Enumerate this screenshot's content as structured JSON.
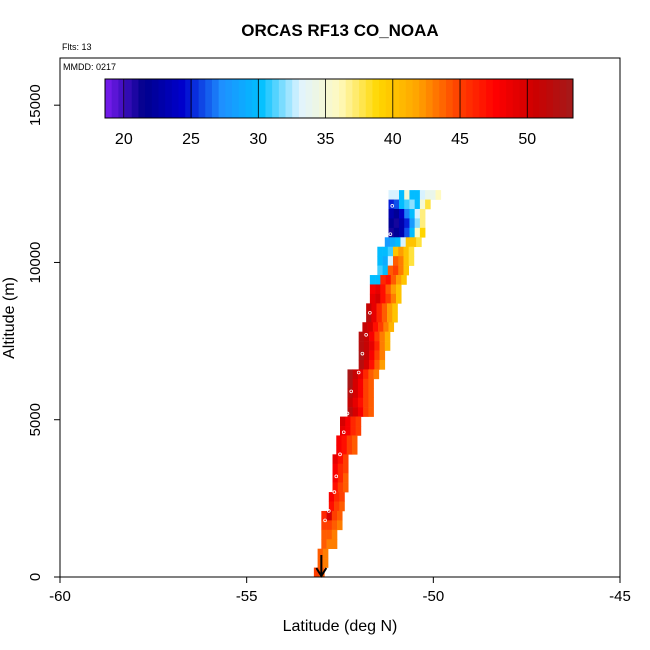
{
  "chart_data": {
    "type": "heatmap",
    "title": "ORCAS RF13 CO_NOAA",
    "flights_label": "Flts: 13",
    "date_label": "MMDD: 0217",
    "xlabel": "Latitude (deg N)",
    "ylabel": "Altitude (m)",
    "xlim": [
      -60,
      -45
    ],
    "ylim": [
      0,
      16500
    ],
    "xticks": [
      -60,
      -55,
      -50,
      -45
    ],
    "yticks": [
      0,
      5000,
      10000,
      15000
    ],
    "colorbar": {
      "range": [
        18.6,
        53.4
      ],
      "ticks": [
        20,
        25,
        30,
        35,
        40,
        45,
        50
      ],
      "colors": [
        "#7a1cf0",
        "#00008b",
        "#0000cd",
        "#1e90ff",
        "#00bfff",
        "#e0f4ff",
        "#fffac0",
        "#ffd700",
        "#ffa500",
        "#ff4500",
        "#ff0000",
        "#cd0000",
        "#a31a1a"
      ]
    },
    "profile": [
      {
        "alt": 12000,
        "lat_start": -51.2,
        "values": [
          33,
          33,
          30,
          35,
          30,
          30,
          33,
          34,
          34,
          36
        ]
      },
      {
        "alt": 11700,
        "lat_start": -51.2,
        "values": [
          25,
          26,
          30,
          31,
          32,
          30,
          35,
          38
        ]
      },
      {
        "alt": 11400,
        "lat_start": -51.2,
        "values": [
          23,
          22,
          24,
          27,
          30,
          33,
          37
        ]
      },
      {
        "alt": 11100,
        "lat_start": -51.2,
        "values": [
          22,
          21,
          23,
          25,
          28,
          32,
          37
        ]
      },
      {
        "alt": 10800,
        "lat_start": -51.2,
        "values": [
          21,
          22,
          23,
          26,
          30,
          36,
          39
        ]
      },
      {
        "alt": 10500,
        "lat_start": -51.3,
        "values": [
          28,
          29,
          30,
          33,
          40,
          40,
          38
        ]
      },
      {
        "alt": 10200,
        "lat_start": -51.5,
        "values": [
          30,
          30,
          31,
          40,
          42,
          40,
          38
        ]
      },
      {
        "alt": 9900,
        "lat_start": -51.5,
        "values": [
          30,
          29,
          33,
          44,
          43,
          40,
          38
        ]
      },
      {
        "alt": 9600,
        "lat_start": -51.5,
        "values": [
          31,
          30,
          44,
          45,
          43,
          40
        ]
      },
      {
        "alt": 9300,
        "lat_start": -51.7,
        "values": [
          30,
          30,
          46,
          47,
          44,
          42,
          40
        ]
      },
      {
        "alt": 9000,
        "lat_start": -51.7,
        "values": [
          48,
          49,
          47,
          44,
          42,
          40
        ]
      },
      {
        "alt": 8700,
        "lat_start": -51.7,
        "values": [
          49,
          50,
          47,
          45,
          43,
          40
        ]
      },
      {
        "alt": 8400,
        "lat_start": -51.8,
        "values": [
          51,
          49,
          46,
          44,
          42,
          40
        ]
      },
      {
        "alt": 8100,
        "lat_start": -51.8,
        "values": [
          52,
          49,
          46,
          44,
          42,
          40
        ]
      },
      {
        "alt": 7800,
        "lat_start": -51.9,
        "values": [
          51,
          50,
          47,
          45,
          43,
          41
        ]
      },
      {
        "alt": 7500,
        "lat_start": -52.0,
        "values": [
          52,
          51,
          48,
          45,
          43,
          41
        ]
      },
      {
        "alt": 7200,
        "lat_start": -52.0,
        "values": [
          52,
          51,
          49,
          46,
          43,
          41
        ]
      },
      {
        "alt": 6900,
        "lat_start": -52.0,
        "values": [
          53,
          51,
          48,
          45,
          43
        ]
      },
      {
        "alt": 6600,
        "lat_start": -52.0,
        "values": [
          52,
          50,
          47,
          44,
          42
        ]
      },
      {
        "alt": 6300,
        "lat_start": -52.3,
        "values": [
          53,
          51,
          49,
          46,
          44,
          43
        ]
      },
      {
        "alt": 6000,
        "lat_start": -52.3,
        "values": [
          53,
          50,
          48,
          45,
          44
        ]
      },
      {
        "alt": 5700,
        "lat_start": -52.3,
        "values": [
          52,
          50,
          48,
          45,
          44
        ]
      },
      {
        "alt": 5400,
        "lat_start": -52.3,
        "values": [
          51,
          49,
          47,
          45,
          44
        ]
      },
      {
        "alt": 5100,
        "lat_start": -52.3,
        "values": [
          52,
          50,
          48,
          45,
          44
        ]
      },
      {
        "alt": 4800,
        "lat_start": -52.5,
        "values": [
          50,
          48,
          46,
          45
        ]
      },
      {
        "alt": 4500,
        "lat_start": -52.5,
        "values": [
          49,
          48,
          46,
          45
        ]
      },
      {
        "alt": 4200,
        "lat_start": -52.6,
        "values": [
          48,
          47,
          45,
          44
        ]
      },
      {
        "alt": 3900,
        "lat_start": -52.6,
        "values": [
          48,
          47,
          45,
          44
        ]
      },
      {
        "alt": 3600,
        "lat_start": -52.7,
        "values": [
          49,
          47,
          45
        ]
      },
      {
        "alt": 3300,
        "lat_start": -52.7,
        "values": [
          48,
          46,
          45
        ]
      },
      {
        "alt": 3000,
        "lat_start": -52.7,
        "values": [
          48,
          46,
          44
        ]
      },
      {
        "alt": 2700,
        "lat_start": -52.7,
        "values": [
          47,
          45,
          44
        ]
      },
      {
        "alt": 2400,
        "lat_start": -52.8,
        "values": [
          48,
          46,
          45
        ]
      },
      {
        "alt": 2100,
        "lat_start": -52.8,
        "values": [
          47,
          45,
          44
        ]
      },
      {
        "alt": 1800,
        "lat_start": -53.0,
        "values": [
          46,
          50,
          45,
          44
        ]
      },
      {
        "alt": 1500,
        "lat_start": -53.0,
        "values": [
          45,
          45,
          44,
          43
        ]
      },
      {
        "alt": 1200,
        "lat_start": -53.0,
        "values": [
          44,
          44,
          43
        ]
      },
      {
        "alt": 900,
        "lat_start": -53.0,
        "values": [
          44,
          43,
          43
        ]
      },
      {
        "alt": 600,
        "lat_start": -53.1,
        "values": [
          44,
          43
        ]
      },
      {
        "alt": 300,
        "lat_start": -53.1,
        "values": [
          44,
          43
        ]
      },
      {
        "alt": 0,
        "lat_start": -53.2,
        "values": [
          45,
          44
        ]
      }
    ],
    "markers": [
      {
        "lat": -51.1,
        "alt": 11800
      },
      {
        "lat": -51.15,
        "alt": 10900
      },
      {
        "lat": -51.7,
        "alt": 8400
      },
      {
        "lat": -51.8,
        "alt": 7700
      },
      {
        "lat": -51.9,
        "alt": 7100
      },
      {
        "lat": -52.0,
        "alt": 6500
      },
      {
        "lat": -52.2,
        "alt": 5900
      },
      {
        "lat": -52.3,
        "alt": 5200
      },
      {
        "lat": -52.4,
        "alt": 4600
      },
      {
        "lat": -52.5,
        "alt": 3900
      },
      {
        "lat": -52.6,
        "alt": 3200
      },
      {
        "lat": -52.65,
        "alt": 2700
      },
      {
        "lat": -52.8,
        "alt": 2100
      },
      {
        "lat": -52.9,
        "alt": 1800
      }
    ],
    "takeoff_arrow": {
      "lat": -53.0,
      "alt_top": 700,
      "alt_bottom": 0
    }
  }
}
